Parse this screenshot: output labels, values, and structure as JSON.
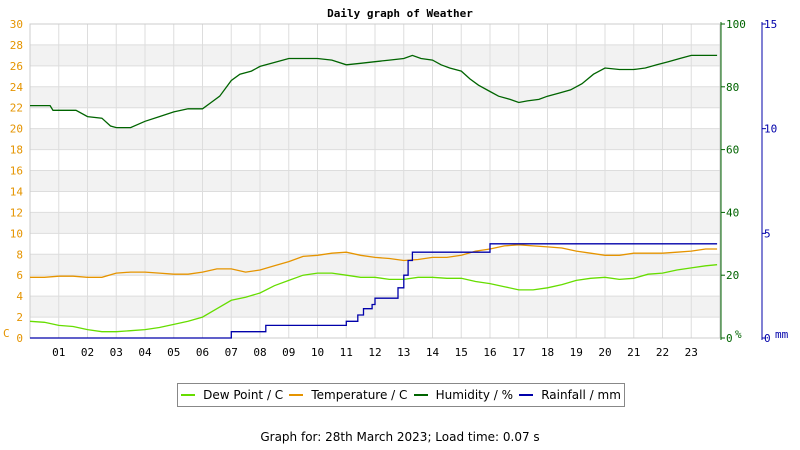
{
  "chart_data": {
    "type": "line",
    "title": "Daily graph of Weather",
    "x_ticks": [
      "01",
      "02",
      "03",
      "04",
      "05",
      "06",
      "07",
      "08",
      "09",
      "10",
      "11",
      "12",
      "13",
      "14",
      "15",
      "16",
      "17",
      "18",
      "19",
      "20",
      "21",
      "22",
      "23"
    ],
    "xlim": [
      0,
      24
    ],
    "axes": {
      "left": {
        "unit_label": "C",
        "color": "#e59400",
        "ylim": [
          0,
          30
        ],
        "ticks": [
          0,
          2,
          4,
          6,
          8,
          10,
          12,
          14,
          16,
          18,
          20,
          22,
          24,
          26,
          28,
          30
        ]
      },
      "right1": {
        "unit_label": "%",
        "color": "#006400",
        "ylim": [
          0,
          100
        ],
        "ticks": [
          0,
          20,
          40,
          60,
          80,
          100
        ]
      },
      "right2": {
        "unit_label": "mm",
        "color": "#0000aa",
        "ylim": [
          0,
          15
        ],
        "ticks": [
          0,
          5,
          10,
          15
        ]
      }
    },
    "series": [
      {
        "name": "Dew Point / C",
        "axis": "left",
        "color": "#66dd00",
        "x": [
          0,
          0.5,
          1,
          1.5,
          2,
          2.5,
          3,
          3.5,
          4,
          4.5,
          5,
          5.5,
          6,
          6.5,
          7,
          7.5,
          8,
          8.5,
          9,
          9.5,
          10,
          10.5,
          11,
          11.5,
          12,
          12.5,
          13,
          13.5,
          14,
          14.5,
          15,
          15.5,
          16,
          16.5,
          17,
          17.5,
          18,
          18.5,
          19,
          19.5,
          20,
          20.5,
          21,
          21.5,
          22,
          22.5,
          23,
          23.5,
          23.9
        ],
        "y": [
          1.6,
          1.5,
          1.2,
          1.1,
          0.8,
          0.6,
          0.6,
          0.7,
          0.8,
          1.0,
          1.3,
          1.6,
          2.0,
          2.8,
          3.6,
          3.9,
          4.3,
          5.0,
          5.5,
          6.0,
          6.2,
          6.2,
          6.0,
          5.8,
          5.8,
          5.6,
          5.6,
          5.8,
          5.8,
          5.7,
          5.7,
          5.4,
          5.2,
          4.9,
          4.6,
          4.6,
          4.8,
          5.1,
          5.5,
          5.7,
          5.8,
          5.6,
          5.7,
          6.1,
          6.2,
          6.5,
          6.7,
          6.9,
          7.0
        ]
      },
      {
        "name": "Temperature / C",
        "axis": "left",
        "color": "#e59400",
        "x": [
          0,
          0.5,
          1,
          1.5,
          2,
          2.5,
          3,
          3.5,
          4,
          4.5,
          5,
          5.5,
          6,
          6.5,
          7,
          7.5,
          8,
          8.5,
          9,
          9.5,
          10,
          10.5,
          11,
          11.5,
          12,
          12.5,
          13,
          13.5,
          14,
          14.5,
          15,
          15.5,
          16,
          16.5,
          17,
          17.5,
          18,
          18.5,
          19,
          19.5,
          20,
          20.5,
          21,
          21.5,
          22,
          22.5,
          23,
          23.5,
          23.9
        ],
        "y": [
          5.8,
          5.8,
          5.9,
          5.9,
          5.8,
          5.8,
          6.2,
          6.3,
          6.3,
          6.2,
          6.1,
          6.1,
          6.3,
          6.6,
          6.6,
          6.3,
          6.5,
          6.9,
          7.3,
          7.8,
          7.9,
          8.1,
          8.2,
          7.9,
          7.7,
          7.6,
          7.4,
          7.5,
          7.7,
          7.7,
          7.9,
          8.3,
          8.5,
          8.8,
          8.9,
          8.8,
          8.7,
          8.6,
          8.3,
          8.1,
          7.9,
          7.9,
          8.1,
          8.1,
          8.1,
          8.2,
          8.3,
          8.5,
          8.5
        ]
      },
      {
        "name": "Humidity / %",
        "axis": "right1",
        "color": "#006400",
        "x": [
          0,
          0.7,
          0.8,
          1.6,
          2.0,
          2.5,
          2.8,
          3.0,
          3.5,
          4.0,
          4.5,
          5.0,
          5.5,
          6.0,
          6.3,
          6.6,
          7.0,
          7.3,
          7.7,
          8.0,
          8.4,
          9.0,
          9.5,
          10.0,
          10.5,
          11.0,
          11.5,
          12.0,
          12.5,
          13.0,
          13.3,
          13.6,
          14.0,
          14.3,
          14.6,
          15.0,
          15.3,
          15.6,
          16.0,
          16.3,
          16.7,
          17.0,
          17.3,
          17.7,
          18.0,
          18.4,
          18.8,
          19.2,
          19.6,
          20.0,
          20.5,
          21.0,
          21.4,
          21.8,
          22.2,
          22.6,
          23.0,
          23.5,
          23.9
        ],
        "y": [
          74,
          74,
          72.5,
          72.5,
          70.5,
          70,
          67.5,
          67,
          67,
          69,
          70.5,
          72,
          73,
          73,
          75,
          77,
          82,
          84,
          85,
          86.5,
          87.5,
          89,
          89,
          89,
          88.5,
          87,
          87.5,
          88,
          88.5,
          89,
          90,
          89,
          88.5,
          87,
          86,
          85,
          82.5,
          80.5,
          78.5,
          77,
          76,
          75,
          75.5,
          76,
          77,
          78,
          79,
          81,
          84,
          86,
          85.5,
          85.5,
          86,
          87,
          88,
          89,
          90,
          90,
          90
        ]
      },
      {
        "name": "Rainfall / mm",
        "axis": "right2",
        "color": "#0000aa",
        "x": [
          0,
          6.9,
          7.0,
          8.1,
          8.2,
          10.9,
          11.0,
          11.4,
          11.6,
          11.9,
          12.0,
          12.7,
          12.8,
          13.0,
          13.15,
          13.3,
          15.9,
          16.0,
          23.9
        ],
        "y": [
          0,
          0,
          0.3,
          0.3,
          0.6,
          0.6,
          0.8,
          1.1,
          1.4,
          1.6,
          1.9,
          1.9,
          2.4,
          3.0,
          3.7,
          4.1,
          4.1,
          4.5,
          4.5
        ]
      }
    ]
  },
  "footer": "Graph for: 28th March 2023; Load time: 0.07 s"
}
